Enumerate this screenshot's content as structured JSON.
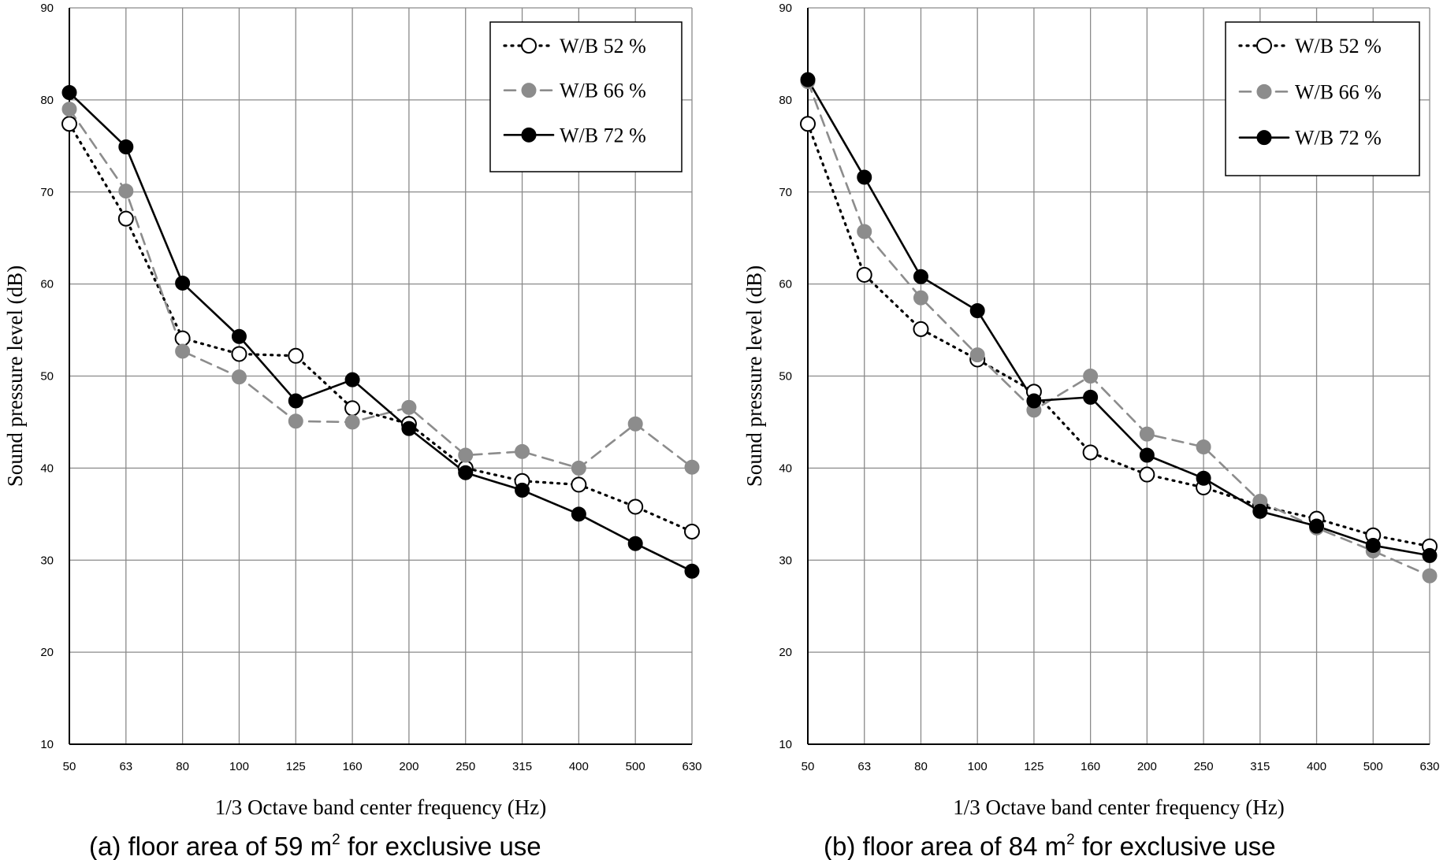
{
  "chart_data": [
    {
      "type": "line",
      "caption": {
        "prefix": "(a) floor area of 59 m",
        "sup": "2",
        "suffix": " for exclusive use"
      },
      "xlabel": "1/3 Octave band center frequency (Hz)",
      "ylabel": "Sound pressure level (dB)",
      "categories": [
        "50",
        "63",
        "80",
        "100",
        "125",
        "160",
        "200",
        "250",
        "315",
        "400",
        "500",
        "630"
      ],
      "ylim": [
        10,
        90
      ],
      "yticks": [
        10,
        20,
        30,
        40,
        50,
        60,
        70,
        80,
        90
      ],
      "grid": true,
      "legend_position": "top-right",
      "series": [
        {
          "name": "W/B 52 %",
          "style": "dotted",
          "marker": "hollow",
          "color": "#000000",
          "values": [
            77.4,
            67.1,
            54.1,
            52.4,
            52.2,
            46.5,
            44.8,
            40.0,
            38.6,
            38.2,
            35.8,
            33.1
          ]
        },
        {
          "name": "W/B 66 %",
          "style": "dashed",
          "marker": "gray",
          "color": "#8c8c8c",
          "values": [
            79.0,
            70.1,
            52.7,
            49.9,
            45.1,
            45.0,
            46.6,
            41.4,
            41.8,
            40.0,
            44.8,
            40.1
          ]
        },
        {
          "name": "W/B 72 %",
          "style": "solid",
          "marker": "filled",
          "color": "#000000",
          "values": [
            80.8,
            74.9,
            60.1,
            54.3,
            47.3,
            49.6,
            44.3,
            39.5,
            37.6,
            35.0,
            31.8,
            28.8
          ]
        }
      ]
    },
    {
      "type": "line",
      "caption": {
        "prefix": "(b) floor area of 84 m",
        "sup": "2",
        "suffix": " for exclusive use"
      },
      "xlabel": "1/3 Octave band center frequency (Hz)",
      "ylabel": "Sound pressure level (dB)",
      "categories": [
        "50",
        "63",
        "80",
        "100",
        "125",
        "160",
        "200",
        "250",
        "315",
        "400",
        "500",
        "630"
      ],
      "ylim": [
        10,
        90
      ],
      "yticks": [
        10,
        20,
        30,
        40,
        50,
        60,
        70,
        80,
        90
      ],
      "grid": true,
      "legend_position": "top-right",
      "series": [
        {
          "name": "W/B 52 %",
          "style": "dotted",
          "marker": "hollow",
          "color": "#000000",
          "values": [
            77.4,
            61.0,
            55.1,
            51.8,
            48.3,
            41.7,
            39.3,
            37.9,
            35.9,
            34.5,
            32.7,
            31.5
          ]
        },
        {
          "name": "W/B 66 %",
          "style": "dashed",
          "marker": "gray",
          "color": "#8c8c8c",
          "values": [
            82.0,
            65.7,
            58.5,
            52.3,
            46.3,
            50.0,
            43.7,
            42.3,
            36.4,
            33.5,
            31.0,
            28.3
          ]
        },
        {
          "name": "W/B 72 %",
          "style": "solid",
          "marker": "filled",
          "color": "#000000",
          "values": [
            82.2,
            71.6,
            60.8,
            57.1,
            47.3,
            47.7,
            41.4,
            38.9,
            35.3,
            33.7,
            31.6,
            30.5
          ]
        }
      ]
    }
  ]
}
